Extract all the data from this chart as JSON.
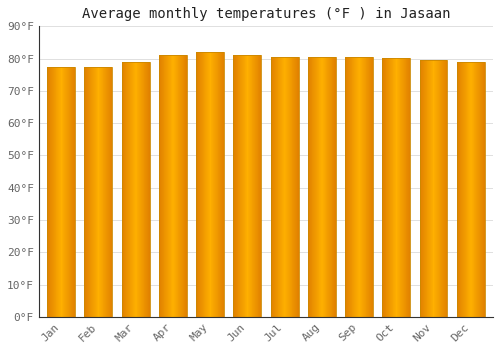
{
  "title": "Average monthly temperatures (°F ) in Jasaan",
  "months": [
    "Jan",
    "Feb",
    "Mar",
    "Apr",
    "May",
    "Jun",
    "Jul",
    "Aug",
    "Sep",
    "Oct",
    "Nov",
    "Dec"
  ],
  "values": [
    77.5,
    77.5,
    78.8,
    81.0,
    82.0,
    81.0,
    80.5,
    80.6,
    80.5,
    80.2,
    79.7,
    78.8
  ],
  "ylim": [
    0,
    90
  ],
  "yticks": [
    0,
    10,
    20,
    30,
    40,
    50,
    60,
    70,
    80,
    90
  ],
  "ytick_labels": [
    "0°F",
    "10°F",
    "20°F",
    "30°F",
    "40°F",
    "50°F",
    "60°F",
    "70°F",
    "80°F",
    "90°F"
  ],
  "bar_color_center": "#FFB300",
  "bar_color_edge_left": "#E08000",
  "bar_color_edge_right": "#E08000",
  "bar_edge_color": "#CC8800",
  "background_color": "#FFFFFF",
  "grid_color": "#E0E0E0",
  "title_fontsize": 10,
  "tick_fontsize": 8,
  "title_font": "monospace",
  "tick_font": "monospace",
  "tick_color": "#666666",
  "figsize": [
    5.0,
    3.5
  ],
  "dpi": 100
}
